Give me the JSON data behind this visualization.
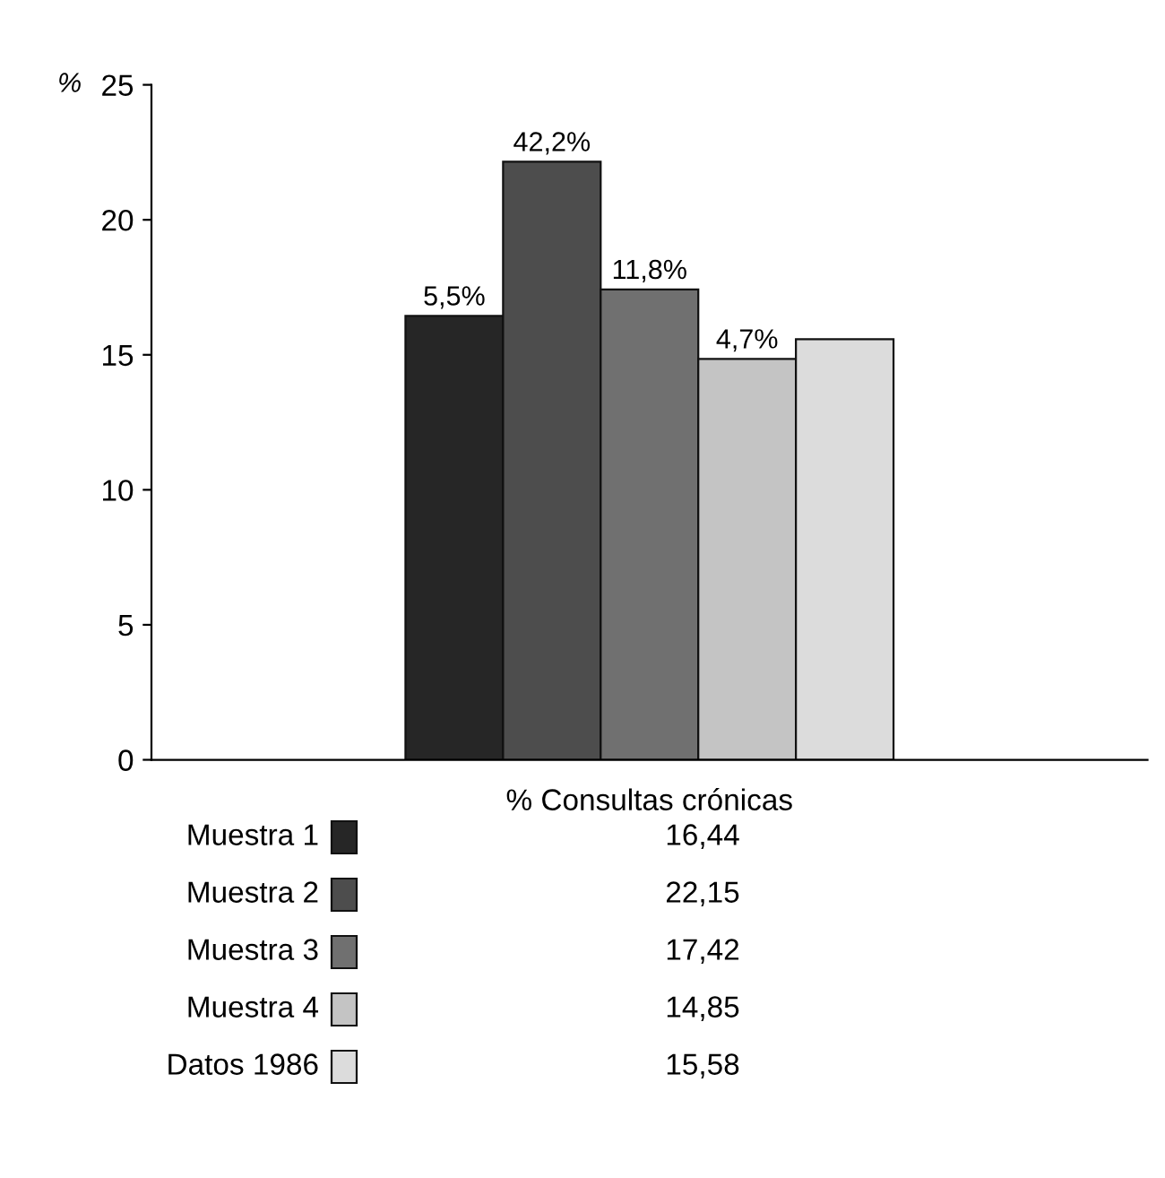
{
  "chart_data": {
    "type": "bar",
    "ylabel": "%",
    "xlabel": "% Consultas crónicas",
    "categories": [
      null
    ],
    "ylim": [
      0,
      25
    ],
    "yticks": [
      0,
      5,
      10,
      15,
      20,
      25
    ],
    "legend": "bottom",
    "series": [
      {
        "name": "Muestra 1",
        "color": "#262626",
        "values": [
          16.44
        ]
      },
      {
        "name": "Muestra 2",
        "color": "#4d4d4d",
        "values": [
          22.15
        ]
      },
      {
        "name": "Muestra 3",
        "color": "#707070",
        "values": [
          17.42
        ]
      },
      {
        "name": "Muestra 4",
        "color": "#c4c4c4",
        "values": [
          14.85
        ]
      },
      {
        "name": "Datos 1986",
        "color": "#dcdcdc",
        "values": [
          15.58
        ]
      }
    ],
    "annotations": [
      {
        "text": "5,5%",
        "y": 16.44
      },
      {
        "text": "42,2%",
        "y": 22.15
      },
      {
        "text": "11,8%",
        "y": 17.42
      },
      {
        "text": "4,7%",
        "y": 14.85
      },
      "16,44",
      "22,15",
      "17,42",
      "14,85",
      "15,58"
    ]
  }
}
